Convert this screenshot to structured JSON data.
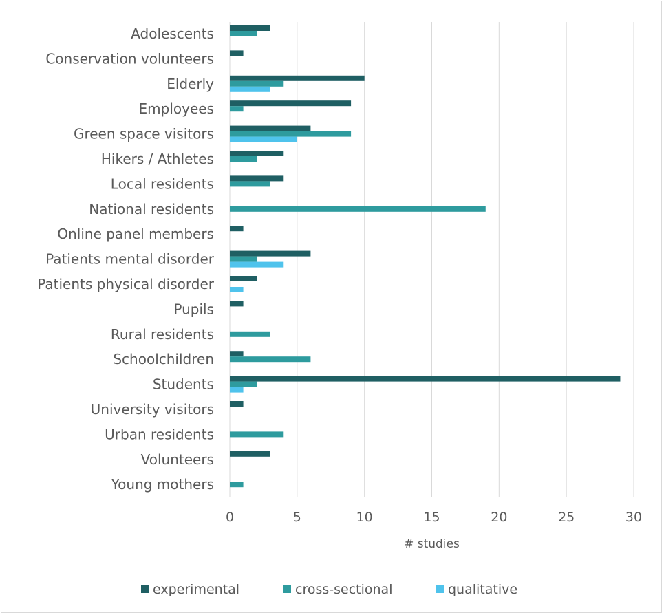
{
  "chart_data": {
    "type": "bar",
    "orientation": "horizontal",
    "title": "",
    "xlabel": "# studies",
    "ylabel": "",
    "xlim": [
      0,
      30
    ],
    "xticks": [
      0,
      5,
      10,
      15,
      20,
      25,
      30
    ],
    "grid": true,
    "legend_position": "bottom",
    "categories": [
      "Adolescents",
      "Conservation volunteers",
      "Elderly",
      "Employees",
      "Green space visitors",
      "Hikers / Athletes",
      "Local residents",
      "National residents",
      "Online panel members",
      "Patients mental disorder",
      "Patients physical disorder",
      "Pupils",
      "Rural residents",
      "Schoolchildren",
      "Students",
      "University visitors",
      "Urban residents",
      "Volunteers",
      "Young mothers"
    ],
    "series": [
      {
        "name": "experimental",
        "color": "#1f5f63",
        "values": [
          3,
          1,
          10,
          9,
          6,
          4,
          4,
          0,
          1,
          6,
          2,
          1,
          0,
          1,
          29,
          1,
          0,
          3,
          0
        ]
      },
      {
        "name": "cross-sectional",
        "color": "#2e9b9e",
        "values": [
          2,
          0,
          4,
          1,
          9,
          2,
          3,
          19,
          0,
          2,
          0,
          0,
          3,
          6,
          2,
          0,
          4,
          0,
          1
        ]
      },
      {
        "name": "qualitative",
        "color": "#4fc3ec",
        "values": [
          0,
          0,
          3,
          0,
          5,
          0,
          0,
          0,
          0,
          4,
          1,
          0,
          0,
          0,
          1,
          0,
          0,
          0,
          0
        ]
      }
    ]
  }
}
